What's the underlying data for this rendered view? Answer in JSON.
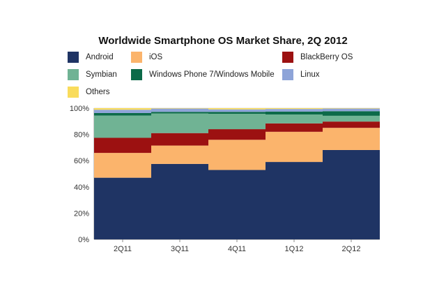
{
  "chart_data": {
    "type": "bar",
    "stacked": true,
    "title": "Worldwide Smartphone OS Market Share, 2Q 2012",
    "categories": [
      "2Q11",
      "3Q11",
      "4Q11",
      "1Q12",
      "2Q12"
    ],
    "ylim": [
      0,
      100
    ],
    "y_ticks": [
      "0%",
      "20%",
      "40%",
      "60%",
      "80%",
      "100%"
    ],
    "grid": true,
    "legend_position": "top",
    "series": [
      {
        "name": "Android",
        "color": "#1f3464",
        "values": [
          47,
          57.5,
          52.9,
          59,
          68.1
        ]
      },
      {
        "name": "iOS",
        "color": "#fbb46c",
        "values": [
          18.9,
          14,
          23,
          23,
          16.9
        ]
      },
      {
        "name": "BlackBerry OS",
        "color": "#9c1111",
        "values": [
          11.5,
          9.5,
          8.1,
          6.4,
          4.8
        ]
      },
      {
        "name": "Symbian",
        "color": "#70b394",
        "values": [
          17,
          15,
          11.7,
          6.8,
          4.4
        ]
      },
      {
        "name": "Windows Phone 7/Windows Mobile",
        "color": "#0c6a49",
        "values": [
          1.9,
          1.2,
          1.5,
          2.2,
          3.5
        ]
      },
      {
        "name": "Linux",
        "color": "#8ea4d8",
        "values": [
          2.5,
          2.5,
          1.9,
          2,
          2
        ]
      },
      {
        "name": "Others",
        "color": "#f9dc5c",
        "values": [
          1.2,
          0.3,
          0.9,
          0.6,
          0.3
        ]
      }
    ]
  }
}
